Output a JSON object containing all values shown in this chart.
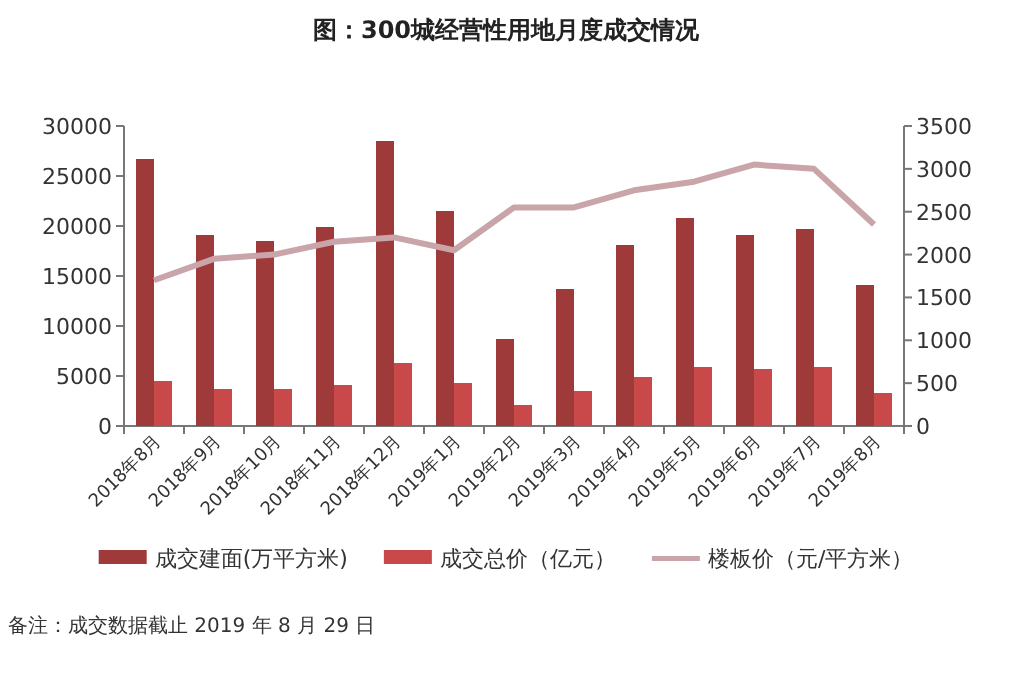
{
  "chart_data": {
    "type": "bar",
    "title": "图：300城经营性用地月度成交情况",
    "categories": [
      "2018年8月",
      "2018年9月",
      "2018年10月",
      "2018年11月",
      "2018年12月",
      "2019年1月",
      "2019年2月",
      "2019年3月",
      "2019年4月",
      "2019年5月",
      "2019年6月",
      "2019年7月",
      "2019年8月"
    ],
    "series": [
      {
        "name": "成交建面(万平方米)",
        "color": "#9e3a3a",
        "values": [
          26700,
          19100,
          18500,
          19900,
          28500,
          21500,
          8700,
          13700,
          18100,
          20800,
          19100,
          19700,
          14100
        ]
      },
      {
        "name": "成交总价（亿元）",
        "color": "#c9494b",
        "values": [
          4500,
          3700,
          3700,
          4100,
          6300,
          4300,
          2100,
          3500,
          4900,
          5900,
          5700,
          5900,
          3300
        ]
      },
      {
        "name": "楼板价（元/平方米）",
        "type": "line",
        "axis": "y2",
        "color": "#c9a5aa",
        "values": [
          1700,
          1950,
          2000,
          2150,
          2200,
          2050,
          2550,
          2550,
          2750,
          2850,
          3050,
          3000,
          2350
        ]
      }
    ],
    "ylim": [
      0,
      30000
    ],
    "yticks": [
      0,
      5000,
      10000,
      15000,
      20000,
      25000,
      30000
    ],
    "y2lim": [
      0,
      3500
    ],
    "y2ticks": [
      0,
      500,
      1000,
      1500,
      2000,
      2500,
      3000,
      3500
    ],
    "legend": "bottom",
    "marker": "none",
    "annotations": [
      "备注：成交数据截止 2019 年 8 月 29 日"
    ]
  }
}
